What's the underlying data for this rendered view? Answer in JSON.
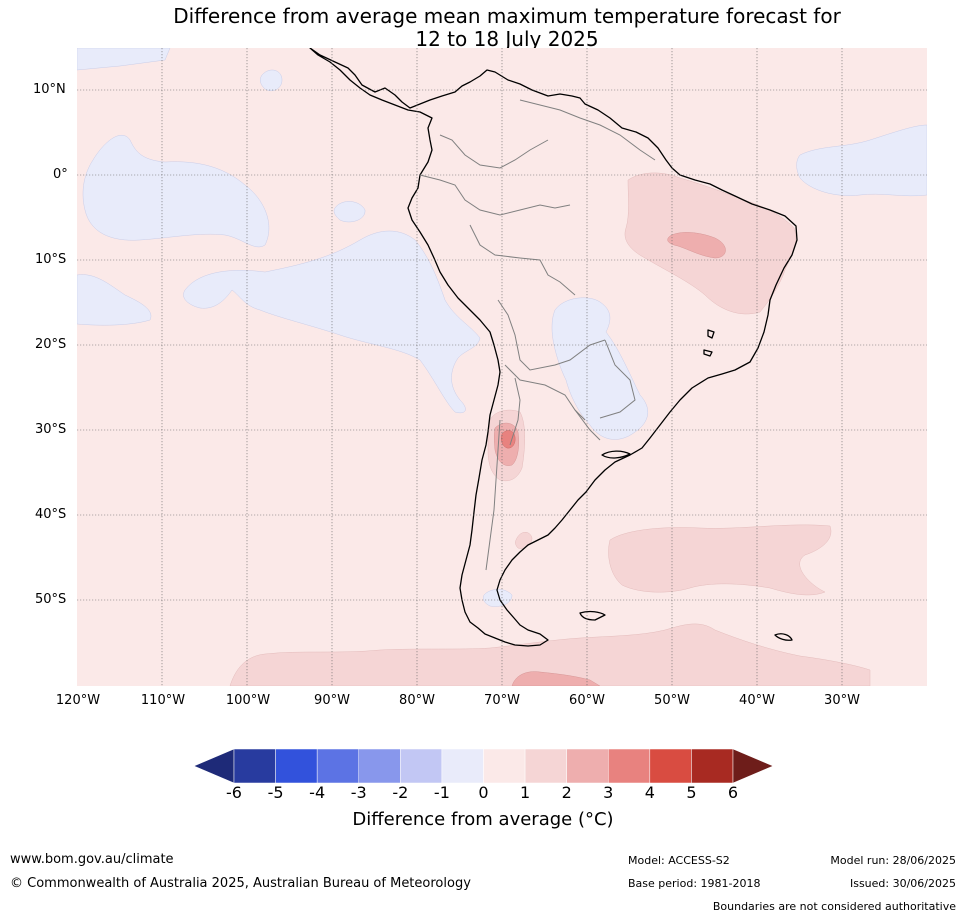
{
  "title": {
    "line1": "Difference from average mean maximum temperature forecast for",
    "line2": "12 to 18 July 2025"
  },
  "map": {
    "lat_labels": [
      "10°N",
      "0°",
      "10°S",
      "20°S",
      "30°S",
      "40°S",
      "50°S"
    ],
    "lon_labels": [
      "120°W",
      "110°W",
      "100°W",
      "90°W",
      "80°W",
      "70°W",
      "60°W",
      "50°W",
      "40°W",
      "30°W"
    ],
    "colors": {
      "ocean_base": "#fbe9e8",
      "cool": "#e8ebfa",
      "warm1": "#f5d5d5",
      "warm2": "#eeaeae",
      "warm3": "#e8827f"
    }
  },
  "colorbar": {
    "ticks": [
      "-6",
      "-5",
      "-4",
      "-3",
      "-2",
      "-1",
      "0",
      "1",
      "2",
      "3",
      "4",
      "5",
      "6"
    ],
    "colors": [
      "#283b9f",
      "#3252dc",
      "#5c73e4",
      "#8897ec",
      "#c2c7f4",
      "#e9ebfa",
      "#fbe9e8",
      "#f5d5d5",
      "#eeaeae",
      "#e8827f",
      "#d94c41",
      "#a82a22"
    ],
    "under_color": "#1e2a78",
    "over_color": "#6e1d1a",
    "title": "Difference from average (°C)"
  },
  "footer": {
    "website": "www.bom.gov.au/climate",
    "copyright": "© Commonwealth of Australia 2025, Australian Bureau of Meteorology",
    "model": "Model: ACCESS-S2",
    "base_period": "Base period: 1981-2018",
    "model_run": "Model run: 28/06/2025",
    "issued": "Issued: 30/06/2025",
    "disclaimer": "Boundaries are not considered authoritative"
  }
}
